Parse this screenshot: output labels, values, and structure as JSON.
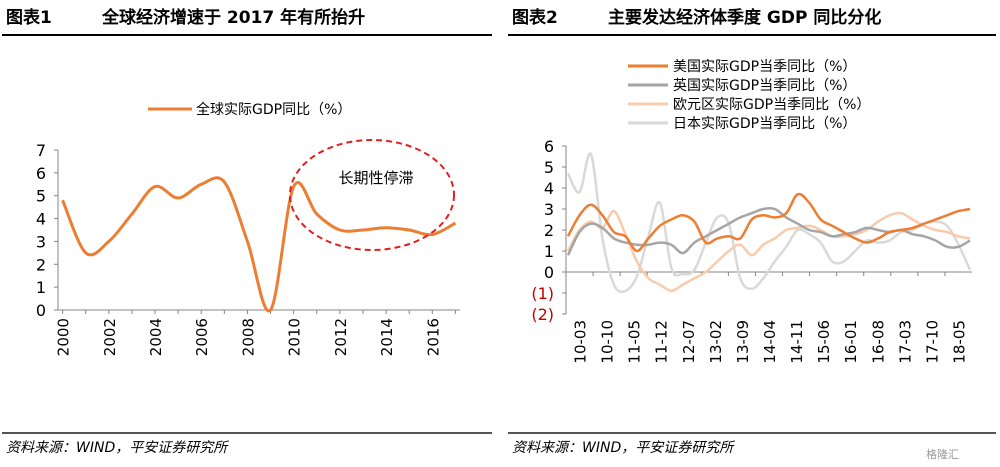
{
  "left_panel": {
    "label": "图表1",
    "title": "全球经济增速于 2017 年有所抬升",
    "source": "资料来源：WIND，平安证券研究所",
    "annotation": "长期性停滞"
  },
  "right_panel": {
    "label": "图表2",
    "title": "主要发达经济体季度 GDP 同比分化",
    "source": "资料来源：WIND，平安证券研究所"
  },
  "watermark": "格隆汇",
  "colors": {
    "global": "#ED7D31",
    "us": "#ED7D31",
    "uk": "#A5A5A5",
    "euro": "#F8CBAD",
    "japan": "#D9D9D9",
    "circle": "#E02020",
    "negative_tick": "#C00000"
  },
  "chart_data": [
    {
      "type": "line",
      "ylim": [
        0,
        7
      ],
      "yticks": [
        "0",
        "1",
        "2",
        "3",
        "4",
        "5",
        "6",
        "7"
      ],
      "xlim": [
        1999.8,
        2017.2
      ],
      "xticks": [
        "2000",
        "2002",
        "2004",
        "2006",
        "2008",
        "2010",
        "2012",
        "2014",
        "2016"
      ],
      "legend": "top-left",
      "grid": false,
      "series": [
        {
          "name": "全球实际GDP同比（%）",
          "x": [
            2000,
            2001,
            2002,
            2003,
            2004,
            2005,
            2006,
            2007,
            2008,
            2009,
            2010,
            2011,
            2012,
            2013,
            2014,
            2015,
            2016,
            2017
          ],
          "values": [
            4.8,
            2.5,
            3.0,
            4.2,
            5.4,
            4.9,
            5.5,
            5.6,
            3.0,
            0.0,
            5.4,
            4.2,
            3.5,
            3.5,
            3.6,
            3.5,
            3.3,
            3.8
          ]
        }
      ]
    },
    {
      "type": "line",
      "ylim": [
        -2,
        6
      ],
      "yticks": [
        "(2)",
        "(1)",
        "0",
        "1",
        "2",
        "3",
        "4",
        "5",
        "6"
      ],
      "xticks": [
        "10-03",
        "10-10",
        "11-05",
        "11-12",
        "12-07",
        "13-02",
        "13-09",
        "14-04",
        "14-11",
        "15-06",
        "16-01",
        "16-08",
        "17-03",
        "17-10",
        "18-05"
      ],
      "legend": "top-center",
      "grid": false,
      "series": [
        {
          "name": "美国实际GDP当季同比（%）",
          "values": [
            1.7,
            2.7,
            3.2,
            2.7,
            1.9,
            1.7,
            1.0,
            1.6,
            2.2,
            2.5,
            2.7,
            2.4,
            1.4,
            1.6,
            1.7,
            1.6,
            2.5,
            2.7,
            2.6,
            2.8,
            3.7,
            3.3,
            2.5,
            2.2,
            1.9,
            1.6,
            1.4,
            1.6,
            1.9,
            2.0,
            2.1,
            2.3,
            2.5,
            2.7,
            2.9,
            3.0
          ]
        },
        {
          "name": "英国实际GDP当季同比（%）",
          "values": [
            0.8,
            1.9,
            2.3,
            2.1,
            1.6,
            1.4,
            1.3,
            1.3,
            1.4,
            1.3,
            0.9,
            1.4,
            1.7,
            2.0,
            2.3,
            2.6,
            2.8,
            3.0,
            3.0,
            2.6,
            2.3,
            2.0,
            1.9,
            1.7,
            1.8,
            1.9,
            2.1,
            2.0,
            1.9,
            2.0,
            1.8,
            1.7,
            1.5,
            1.2,
            1.2,
            1.5
          ]
        },
        {
          "name": "欧元区实际GDP当季同比（%）",
          "values": [
            1.0,
            2.0,
            2.4,
            2.1,
            2.9,
            1.8,
            0.5,
            -0.3,
            -0.6,
            -0.9,
            -0.6,
            -0.3,
            0.0,
            0.5,
            1.0,
            1.3,
            0.8,
            1.3,
            1.6,
            2.0,
            2.1,
            2.2,
            2.0,
            1.7,
            1.7,
            1.8,
            2.0,
            2.4,
            2.7,
            2.8,
            2.5,
            2.2,
            2.0,
            1.9,
            1.7,
            1.6
          ]
        },
        {
          "name": "日本实际GDP当季同比（%）",
          "values": [
            4.7,
            3.8,
            5.6,
            1.6,
            -0.6,
            -0.9,
            -0.2,
            1.7,
            3.3,
            0.2,
            -0.1,
            0.1,
            1.4,
            2.6,
            2.3,
            -0.3,
            -0.8,
            -0.3,
            0.5,
            1.2,
            2.0,
            1.8,
            1.4,
            0.5,
            0.5,
            1.0,
            1.5,
            1.4,
            1.5,
            1.9,
            2.0,
            2.3,
            2.4,
            2.2,
            1.3,
            0.1
          ]
        }
      ]
    }
  ]
}
